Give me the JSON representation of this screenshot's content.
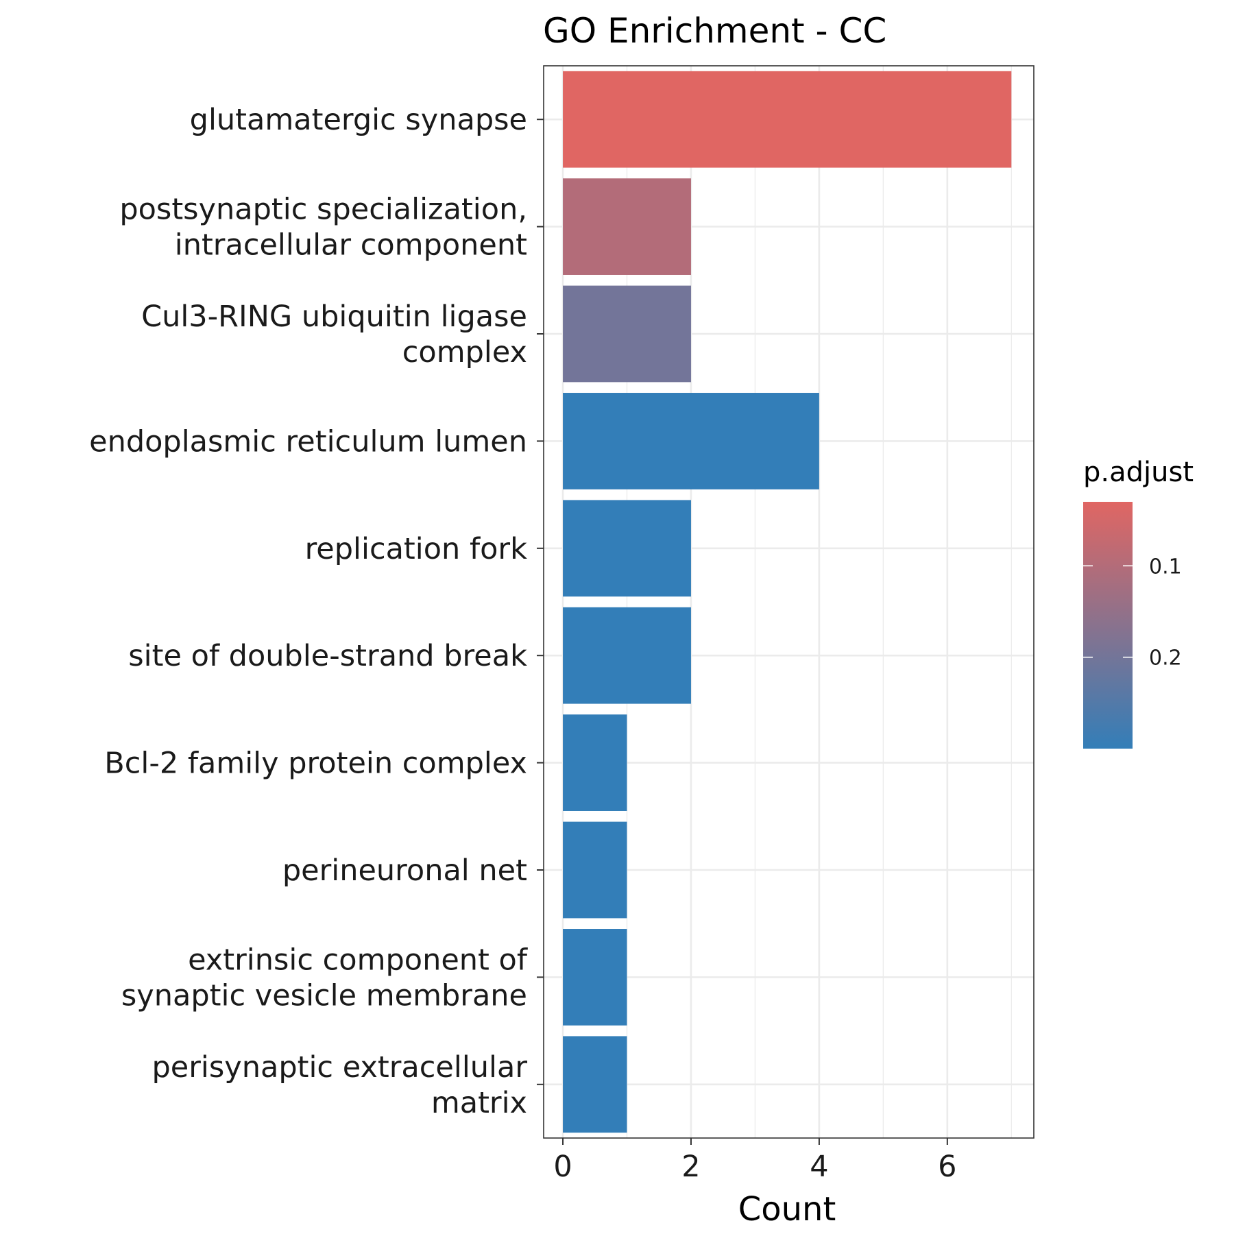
{
  "chart_data": {
    "type": "bar",
    "orientation": "horizontal",
    "title": "GO Enrichment - CC",
    "xlabel": "Count",
    "ylabel": "",
    "xlim": [
      0,
      7.35
    ],
    "x_ticks": [
      0,
      2,
      4,
      6
    ],
    "grid": true,
    "categories": [
      [
        "glutamatergic synapse"
      ],
      [
        "postsynaptic specialization,",
        "intracellular component"
      ],
      [
        "Cul3-RING ubiquitin ligase",
        "complex"
      ],
      [
        "endoplasmic reticulum lumen"
      ],
      [
        "replication fork"
      ],
      [
        "site of double-strand break"
      ],
      [
        "Bcl-2 family protein complex"
      ],
      [
        "perineuronal net"
      ],
      [
        "extrinsic component of",
        "synaptic vesicle membrane"
      ],
      [
        "perisynaptic extracellular",
        "matrix"
      ]
    ],
    "values": [
      7,
      2,
      2,
      4,
      2,
      2,
      1,
      1,
      1,
      1
    ],
    "p_adjust": [
      0.03,
      0.1,
      0.2,
      0.3,
      0.3,
      0.3,
      0.3,
      0.3,
      0.3,
      0.3
    ],
    "legend": {
      "title": "p.adjust",
      "position": "right",
      "ticks": [
        0.1,
        0.2
      ],
      "range": [
        0.03,
        0.3
      ],
      "low_color": "#E06663",
      "high_color": "#337EB8"
    }
  }
}
